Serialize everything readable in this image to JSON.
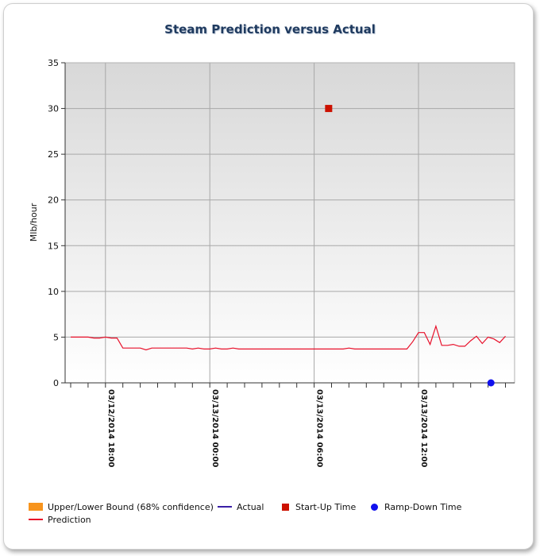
{
  "chart_data": {
    "type": "line",
    "title": "Steam Prediction versus Actual",
    "ylabel": "Mlb/hour",
    "xlabel": "",
    "ylim": [
      0,
      35
    ],
    "yticks": [
      0,
      5,
      10,
      15,
      20,
      25,
      30,
      35
    ],
    "grid": true,
    "legend_position": "bottom",
    "x_tick_labels": [
      {
        "label": "03/12/2014 18:00",
        "index": 6
      },
      {
        "label": "03/13/2014 00:00",
        "index": 24
      },
      {
        "label": "03/13/2014 06:00",
        "index": 42
      },
      {
        "label": "03/13/2014 12:00",
        "index": 60
      }
    ],
    "x_count": 76,
    "series": [
      {
        "name": "Prediction",
        "color": "#e8102a",
        "values": [
          5.0,
          5.0,
          5.0,
          5.0,
          4.9,
          4.9,
          5.0,
          4.9,
          4.9,
          3.8,
          3.8,
          3.8,
          3.8,
          3.6,
          3.8,
          3.8,
          3.8,
          3.8,
          3.8,
          3.8,
          3.8,
          3.7,
          3.8,
          3.7,
          3.7,
          3.8,
          3.7,
          3.7,
          3.8,
          3.7,
          3.7,
          3.7,
          3.7,
          3.7,
          3.7,
          3.7,
          3.7,
          3.7,
          3.7,
          3.7,
          3.7,
          3.7,
          3.7,
          3.7,
          3.7,
          3.7,
          3.7,
          3.7,
          3.8,
          3.7,
          3.7,
          3.7,
          3.7,
          3.7,
          3.7,
          3.7,
          3.7,
          3.7,
          3.7,
          4.5,
          5.5,
          5.5,
          4.2,
          6.2,
          4.1,
          4.1,
          4.2,
          4.0,
          4.0,
          4.6,
          5.1,
          4.3,
          5.0,
          4.8,
          4.4,
          5.1
        ]
      }
    ],
    "markers": [
      {
        "name": "Start-Up Time",
        "color": "#cc1100",
        "shape": "square",
        "index": 44.5,
        "value": 30
      },
      {
        "name": "Ramp-Down Time",
        "color": "#1010ee",
        "shape": "circle",
        "index": 72.5,
        "value": 0
      }
    ],
    "legend": [
      {
        "label": "Upper/Lower Bound (68% confidence)",
        "color": "#f7941d",
        "kind": "box"
      },
      {
        "label": "Actual",
        "color": "#3a1fa6",
        "kind": "line"
      },
      {
        "label": "Start-Up Time",
        "color": "#cc1100",
        "kind": "square"
      },
      {
        "label": "Ramp-Down Time",
        "color": "#1010ee",
        "kind": "dot"
      },
      {
        "label": "Prediction",
        "color": "#e8102a",
        "kind": "line"
      }
    ]
  }
}
